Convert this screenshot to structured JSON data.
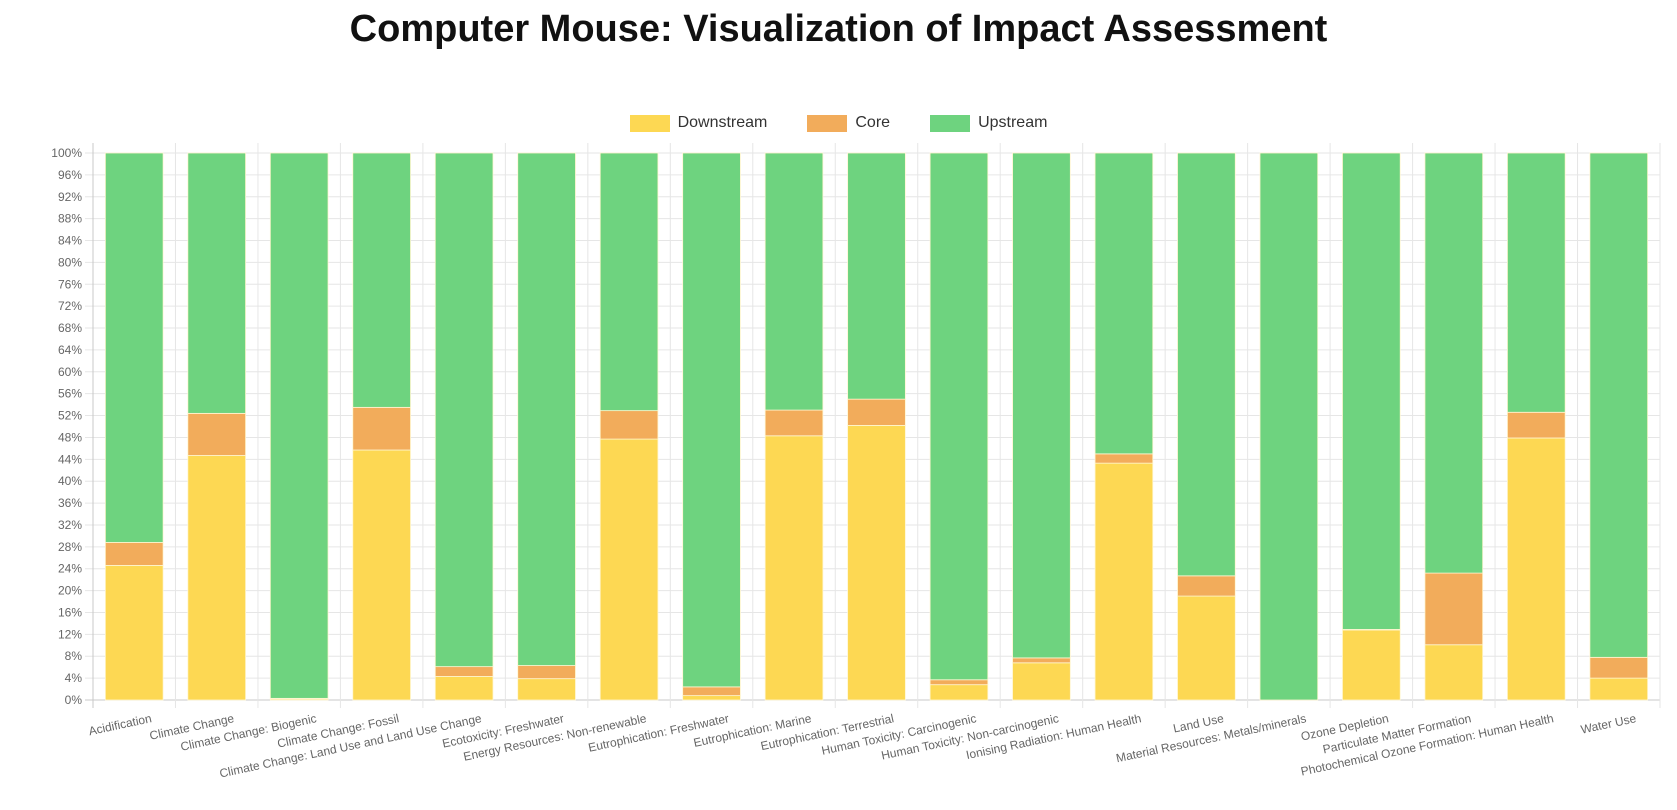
{
  "chart_data": {
    "type": "bar",
    "stacked": true,
    "title": "Computer Mouse: Visualization of Impact Assessment",
    "xlabel": "",
    "ylabel": "",
    "ylim": [
      0,
      100
    ],
    "y_ticks": [
      "0%",
      "4%",
      "8%",
      "12%",
      "16%",
      "20%",
      "24%",
      "28%",
      "32%",
      "36%",
      "40%",
      "44%",
      "48%",
      "52%",
      "56%",
      "60%",
      "64%",
      "68%",
      "72%",
      "76%",
      "80%",
      "84%",
      "88%",
      "92%",
      "96%",
      "100%"
    ],
    "grid": true,
    "legend_position": "top-center",
    "categories": [
      "Acidification",
      "Climate Change",
      "Climate Change: Biogenic",
      "Climate Change: Fossil",
      "Climate Change: Land Use and Land Use Change",
      "Ecotoxicity: Freshwater",
      "Energy Resources: Non-renewable",
      "Eutrophication: Freshwater",
      "Eutrophication: Marine",
      "Eutrophication: Terrestrial",
      "Human Toxicity: Carcinogenic",
      "Human Toxicity: Non-carcinogenic",
      "Ionising Radiation: Human Health",
      "Land Use",
      "Material Resources: Metals/minerals",
      "Ozone Depletion",
      "Particulate Matter Formation",
      "Photochemical Ozone Formation: Human Health",
      "Water Use"
    ],
    "series": [
      {
        "name": "Downstream",
        "color": "#FDD853",
        "values": [
          24.6,
          44.7,
          0.2,
          45.7,
          4.3,
          3.9,
          47.7,
          0.8,
          48.3,
          50.2,
          2.8,
          6.8,
          43.3,
          19.0,
          0.0,
          12.8,
          10.1,
          47.9,
          4.0
        ]
      },
      {
        "name": "Core",
        "color": "#F2AC5B",
        "values": [
          4.2,
          7.7,
          0.1,
          7.8,
          1.8,
          2.4,
          5.2,
          1.6,
          4.7,
          4.8,
          0.9,
          0.9,
          1.7,
          3.7,
          0.0,
          0.1,
          13.1,
          4.7,
          3.8
        ]
      },
      {
        "name": "Upstream",
        "color": "#6ED37F",
        "values": [
          71.2,
          47.6,
          99.7,
          46.5,
          93.9,
          93.7,
          47.1,
          97.6,
          47.0,
          45.0,
          96.3,
          92.3,
          55.0,
          77.3,
          100.0,
          87.1,
          76.8,
          47.4,
          92.2
        ]
      }
    ]
  }
}
